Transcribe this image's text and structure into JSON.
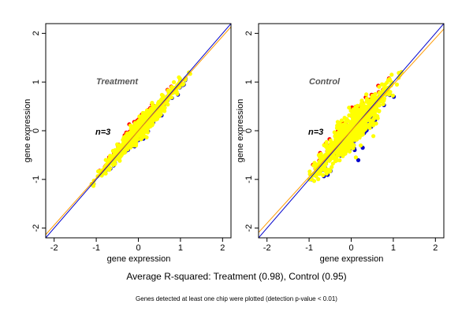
{
  "figure": {
    "caption": "Average R-squared: Treatment (0.98), Control (0.95)",
    "footnote": "Genes detected at least one chip were plotted (detection p-value < 0.01)"
  },
  "colors": {
    "points": "#ffff00",
    "outline_high": "#ff0000",
    "outline_low": "#0000cc",
    "diagonal": "#0000cc",
    "fit_line": "#ff9900"
  },
  "chart_data": [
    {
      "type": "scatter",
      "panel_label": "Treatment",
      "annotation": "n=3",
      "xlabel": "gene expression",
      "ylabel": "gene expression",
      "xlim": [
        -2.2,
        2.2
      ],
      "ylim": [
        -2.2,
        2.2
      ],
      "xticks": [
        -2,
        -1,
        0,
        1,
        2
      ],
      "yticks": [
        -2,
        -1,
        0,
        1,
        2
      ],
      "r_squared": 0.98,
      "cloud": {
        "x_range": [
          -1.1,
          1.2
        ],
        "center": [
          0.0,
          0.0
        ],
        "spread": 0.12
      },
      "lines": [
        {
          "name": "identity",
          "slope": 1.0,
          "intercept": 0.0
        },
        {
          "name": "fit",
          "slope": 0.97,
          "intercept": 0.0
        }
      ],
      "grid": false
    },
    {
      "type": "scatter",
      "panel_label": "Control",
      "annotation": "n=3",
      "xlabel": "gene expression",
      "ylabel": "gene expression",
      "xlim": [
        -2.2,
        2.2
      ],
      "ylim": [
        -2.2,
        2.2
      ],
      "xticks": [
        -2,
        -1,
        0,
        1,
        2
      ],
      "yticks": [
        -2,
        -1,
        0,
        1,
        2
      ],
      "r_squared": 0.95,
      "cloud": {
        "x_range": [
          -1.1,
          1.2
        ],
        "center": [
          0.0,
          0.0
        ],
        "spread": 0.22
      },
      "lines": [
        {
          "name": "identity",
          "slope": 1.0,
          "intercept": 0.0
        },
        {
          "name": "fit",
          "slope": 0.95,
          "intercept": 0.0
        }
      ],
      "grid": false
    }
  ]
}
